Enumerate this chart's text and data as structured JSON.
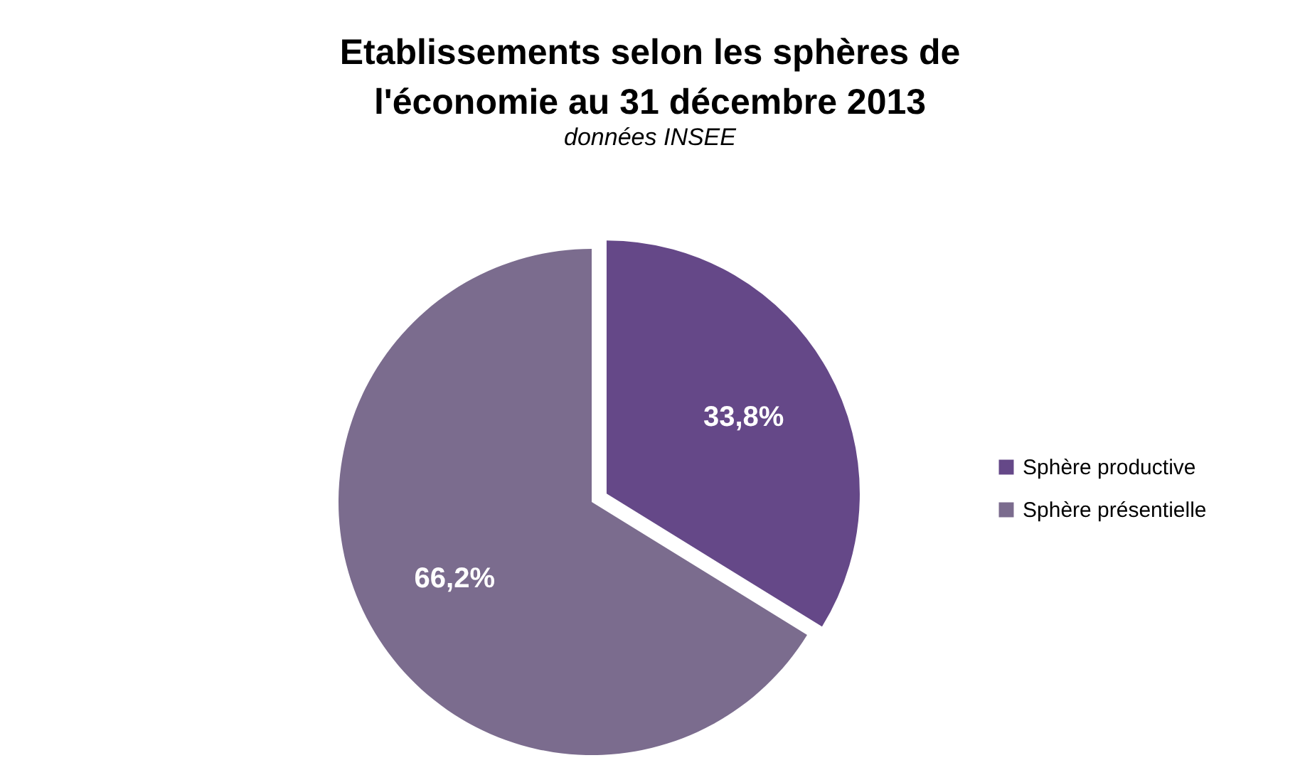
{
  "chart_data": {
    "type": "pie",
    "title": "Etablissements selon les sphères de l'économie au 31 décembre 2013",
    "subtitle": "données INSEE",
    "categories": [
      "Sphère productive",
      "Sphère présentielle"
    ],
    "values": [
      33.8,
      66.2
    ],
    "colors": [
      "#654888",
      "#7b6c8e"
    ],
    "value_labels": [
      "33,8%",
      "66,2%"
    ],
    "legend": "right"
  }
}
